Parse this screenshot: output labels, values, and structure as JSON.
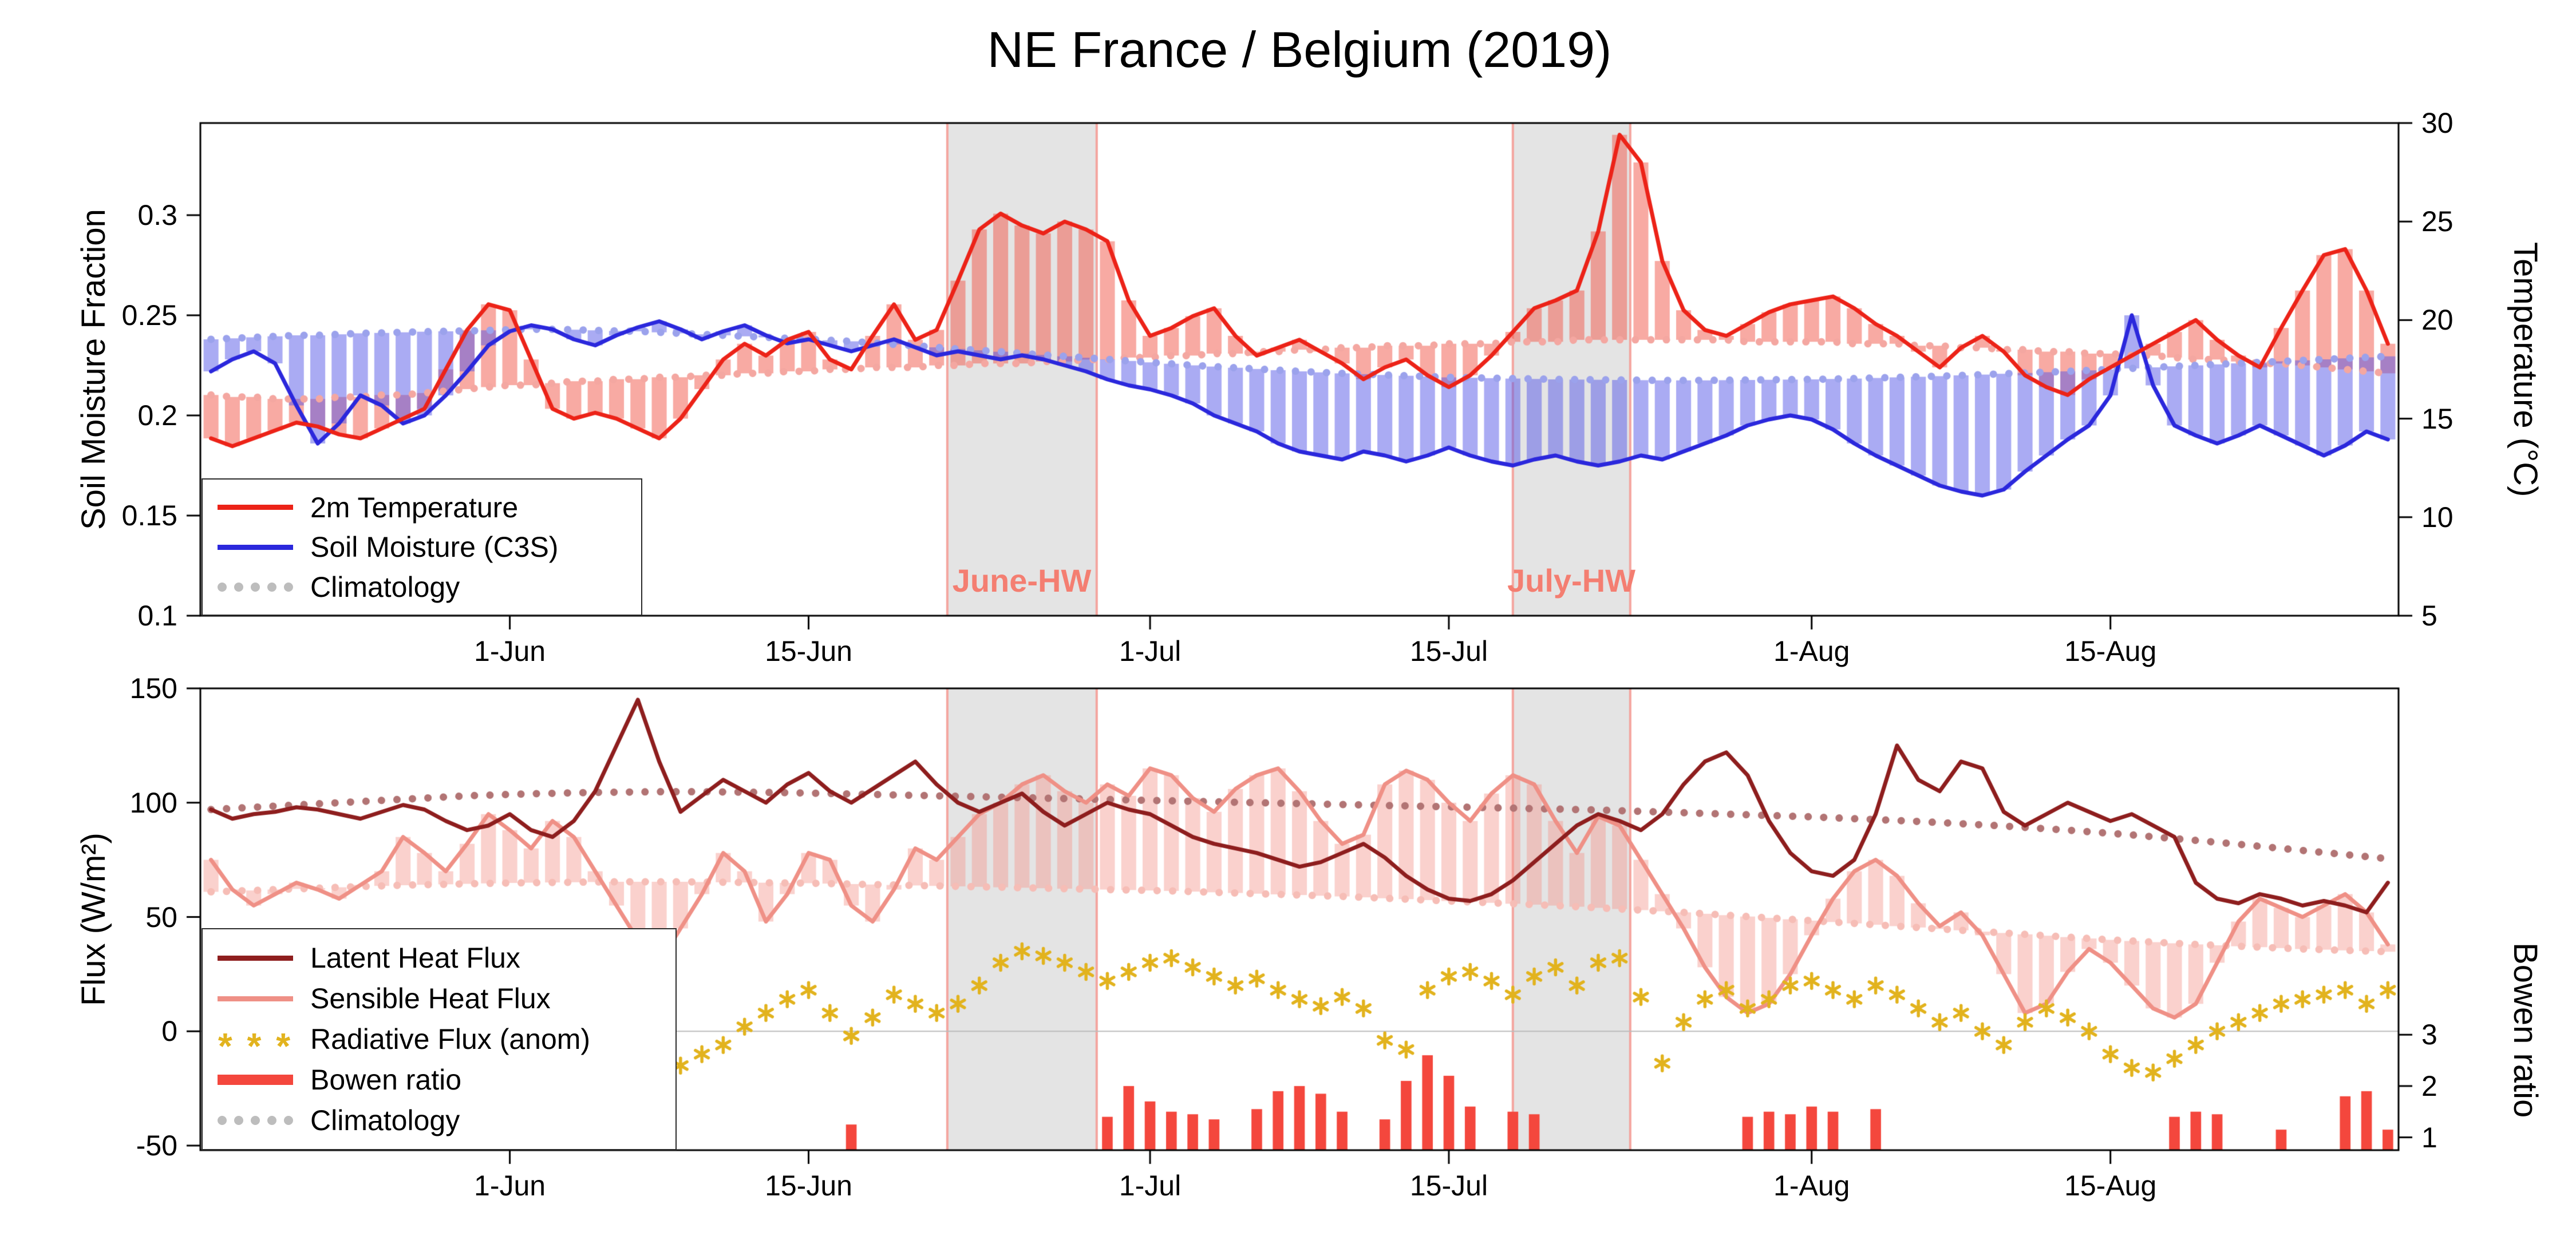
{
  "title": "NE France / Belgium (2019)",
  "markers": {
    "radiative": "* * *"
  },
  "colors": {
    "temperature": "#ec2318",
    "temperature_climatology": "#f4a7a1",
    "temperature_bar": "rgba(242,85,72,0.5)",
    "soil_moisture": "#2b28dc",
    "soil_moisture_climatology": "#9ba2ec",
    "soil_moisture_bar": "rgba(86,88,232,0.5)",
    "latent": "#8e1e1e",
    "latent_climatology": "#b27474",
    "sensible": "#ef9086",
    "sensible_climatology": "#f6bdb6",
    "sensible_bar": "rgba(243,154,144,0.45)",
    "radiative": "#e2b31e",
    "bowen": "#f4473d",
    "climatology_legend": "#bdbdbd",
    "hw_band_fill": "#e4e4e4",
    "hw_band_edge": "rgba(244,156,150,0.9)",
    "hw_label": "#f47e71",
    "zero_line": "#bbbbbb",
    "axis": "#000000"
  },
  "heatwaves": [
    {
      "label": "June-HW",
      "start_day": 35,
      "end_day": 42
    },
    {
      "label": "July-HW",
      "start_day": 61.5,
      "end_day": 67
    }
  ],
  "chart_data": [
    {
      "type": "line",
      "panel": "top",
      "x_start_date": "18-May",
      "x_end_date": "28-Aug",
      "n_days": 103,
      "x_tick_days": [
        14,
        28,
        44,
        58,
        75,
        89
      ],
      "x_tick_labels": [
        "1-Jun",
        "15-Jun",
        "1-Jul",
        "15-Jul",
        "1-Aug",
        "15-Aug"
      ],
      "ylabel_left": "Soil Moisture Fraction",
      "ylim_left": [
        0.1,
        0.346
      ],
      "yticks_left": [
        0.1,
        0.15,
        0.2,
        0.25,
        0.3
      ],
      "ylabel_right": "Temperature (°C)",
      "ylim_right": [
        5,
        30
      ],
      "yticks_right": [
        5,
        10,
        15,
        20,
        25,
        30
      ],
      "legend": [
        "2m Temperature",
        "Soil Moisture (C3S)",
        "Climatology"
      ],
      "series": {
        "temperature": [
          14.0,
          13.6,
          14.0,
          14.4,
          14.8,
          14.6,
          14.2,
          14.0,
          14.5,
          15.0,
          15.5,
          17.5,
          19.5,
          20.8,
          20.5,
          18.0,
          15.5,
          15.0,
          15.3,
          15.0,
          14.5,
          14.0,
          15.0,
          16.5,
          18.0,
          18.8,
          18.2,
          19.0,
          19.4,
          18.0,
          17.5,
          19.2,
          20.8,
          19.0,
          19.5,
          22.0,
          24.6,
          25.4,
          24.8,
          24.4,
          25.0,
          24.6,
          24.0,
          21.0,
          19.2,
          19.6,
          20.2,
          20.6,
          19.2,
          18.2,
          18.6,
          19.0,
          18.4,
          17.8,
          17.0,
          17.6,
          18.0,
          17.2,
          16.6,
          17.2,
          18.2,
          19.4,
          20.6,
          21.0,
          21.5,
          24.5,
          29.4,
          28.0,
          23.0,
          20.5,
          19.5,
          19.2,
          19.8,
          20.4,
          20.8,
          21.0,
          21.2,
          20.6,
          19.8,
          19.2,
          18.4,
          17.6,
          18.6,
          19.2,
          18.4,
          17.2,
          16.6,
          16.2,
          17.0,
          17.6,
          18.2,
          18.8,
          19.4,
          20.0,
          19.0,
          18.2,
          17.6,
          19.6,
          21.5,
          23.3,
          23.6,
          21.5,
          18.8
        ],
        "temperature_climatology": [
          16.2,
          16.1,
          16.1,
          16.0,
          16.0,
          16.0,
          16.1,
          16.1,
          16.2,
          16.2,
          16.3,
          16.4,
          16.5,
          16.6,
          16.7,
          16.7,
          16.8,
          16.9,
          16.9,
          17.0,
          17.0,
          17.1,
          17.1,
          17.2,
          17.2,
          17.3,
          17.3,
          17.4,
          17.4,
          17.5,
          17.5,
          17.6,
          17.6,
          17.6,
          17.7,
          17.7,
          17.8,
          17.8,
          17.8,
          17.9,
          17.9,
          18.0,
          18.0,
          18.1,
          18.1,
          18.2,
          18.2,
          18.3,
          18.3,
          18.4,
          18.4,
          18.5,
          18.5,
          18.6,
          18.6,
          18.7,
          18.7,
          18.7,
          18.8,
          18.8,
          18.8,
          18.9,
          18.9,
          18.9,
          19.0,
          19.0,
          19.0,
          19.0,
          19.0,
          19.0,
          19.0,
          19.0,
          18.9,
          18.9,
          18.9,
          18.9,
          18.9,
          18.8,
          18.8,
          18.8,
          18.7,
          18.7,
          18.6,
          18.6,
          18.5,
          18.5,
          18.4,
          18.4,
          18.3,
          18.3,
          18.2,
          18.2,
          18.1,
          18.0,
          18.0,
          17.9,
          17.8,
          17.8,
          17.7,
          17.6,
          17.5,
          17.4,
          17.3
        ],
        "soil_moisture": [
          0.222,
          0.228,
          0.232,
          0.226,
          0.205,
          0.186,
          0.196,
          0.21,
          0.205,
          0.196,
          0.2,
          0.21,
          0.222,
          0.235,
          0.242,
          0.245,
          0.243,
          0.238,
          0.235,
          0.24,
          0.244,
          0.247,
          0.243,
          0.238,
          0.242,
          0.245,
          0.24,
          0.236,
          0.238,
          0.235,
          0.232,
          0.235,
          0.238,
          0.234,
          0.23,
          0.232,
          0.23,
          0.228,
          0.23,
          0.228,
          0.225,
          0.222,
          0.218,
          0.215,
          0.213,
          0.21,
          0.206,
          0.2,
          0.196,
          0.192,
          0.186,
          0.182,
          0.18,
          0.178,
          0.182,
          0.18,
          0.177,
          0.18,
          0.184,
          0.18,
          0.177,
          0.175,
          0.178,
          0.18,
          0.177,
          0.175,
          0.177,
          0.18,
          0.178,
          0.182,
          0.186,
          0.19,
          0.195,
          0.198,
          0.2,
          0.198,
          0.193,
          0.186,
          0.18,
          0.175,
          0.17,
          0.165,
          0.162,
          0.16,
          0.163,
          0.172,
          0.18,
          0.188,
          0.195,
          0.21,
          0.25,
          0.215,
          0.195,
          0.19,
          0.186,
          0.19,
          0.195,
          0.19,
          0.185,
          0.18,
          0.185,
          0.192,
          0.188
        ],
        "soil_moisture_climatology": [
          0.238,
          0.2385,
          0.239,
          0.2395,
          0.24,
          0.24,
          0.2405,
          0.241,
          0.2412,
          0.2415,
          0.2418,
          0.242,
          0.2422,
          0.2425,
          0.2428,
          0.243,
          0.243,
          0.2428,
          0.2425,
          0.2422,
          0.242,
          0.2415,
          0.241,
          0.2405,
          0.24,
          0.2395,
          0.239,
          0.2385,
          0.238,
          0.2375,
          0.237,
          0.2362,
          0.2355,
          0.2348,
          0.234,
          0.2332,
          0.2325,
          0.2318,
          0.231,
          0.2302,
          0.2295,
          0.2288,
          0.228,
          0.2272,
          0.2265,
          0.2258,
          0.225,
          0.2244,
          0.2238,
          0.2232,
          0.2226,
          0.222,
          0.2215,
          0.221,
          0.2206,
          0.2202,
          0.2198,
          0.2194,
          0.219,
          0.2188,
          0.2186,
          0.2184,
          0.2182,
          0.218,
          0.2179,
          0.2178,
          0.2177,
          0.2176,
          0.2175,
          0.2175,
          0.2175,
          0.2176,
          0.2177,
          0.2178,
          0.2179,
          0.218,
          0.2182,
          0.2184,
          0.2187,
          0.219,
          0.2193,
          0.2196,
          0.22,
          0.2204,
          0.2208,
          0.2212,
          0.2216,
          0.222,
          0.2225,
          0.223,
          0.2235,
          0.224,
          0.2245,
          0.225,
          0.2255,
          0.226,
          0.2265,
          0.227,
          0.2275,
          0.228,
          0.2285,
          0.229,
          0.2295
        ]
      }
    },
    {
      "type": "line",
      "panel": "bottom",
      "x_start_date": "18-May",
      "x_end_date": "28-Aug",
      "n_days": 103,
      "x_tick_days": [
        14,
        28,
        44,
        58,
        75,
        89
      ],
      "x_tick_labels": [
        "1-Jun",
        "15-Jun",
        "1-Jul",
        "15-Jul",
        "1-Aug",
        "15-Aug"
      ],
      "ylabel_left": "Flux (W/m²)",
      "ylim_left": [
        -52,
        150
      ],
      "yticks_left": [
        -50,
        0,
        50,
        100,
        150
      ],
      "ylabel_right": "Bowen ratio",
      "bowen_axis": {
        "ticks": [
          1,
          2,
          3
        ],
        "scale": 22.444,
        "offset": -68.833
      },
      "legend": [
        "Latent Heat Flux",
        "Sensible Heat Flux",
        "Radiative Flux (anom)",
        "Bowen ratio",
        "Climatology"
      ],
      "series": {
        "latent": [
          97,
          93,
          95,
          96,
          98,
          97,
          95,
          93,
          96,
          99,
          97,
          92,
          88,
          90,
          95,
          88,
          85,
          92,
          105,
          125,
          145,
          118,
          96,
          103,
          110,
          105,
          100,
          108,
          113,
          105,
          100,
          106,
          112,
          118,
          108,
          100,
          96,
          100,
          104,
          96,
          90,
          95,
          100,
          97,
          95,
          90,
          85,
          82,
          80,
          78,
          75,
          72,
          74,
          78,
          82,
          76,
          68,
          62,
          58,
          57,
          60,
          66,
          74,
          82,
          90,
          95,
          92,
          88,
          95,
          108,
          118,
          122,
          112,
          92,
          78,
          70,
          68,
          75,
          95,
          125,
          110,
          105,
          118,
          115,
          96,
          90,
          95,
          100,
          96,
          92,
          95,
          90,
          85,
          65,
          58,
          56,
          60,
          58,
          55,
          57,
          55,
          52,
          65
        ],
        "latent_climatology": [
          97,
          97.5,
          98,
          98.5,
          99,
          99.5,
          100,
          100.5,
          101,
          101.5,
          102,
          102.5,
          103,
          103.3,
          103.6,
          103.9,
          104.1,
          104.3,
          104.5,
          104.6,
          104.7,
          104.8,
          104.8,
          104.8,
          104.7,
          104.6,
          104.5,
          104.4,
          104.2,
          104,
          103.8,
          103.6,
          103.4,
          103.2,
          103,
          102.8,
          102.6,
          102.4,
          102.2,
          102,
          101.8,
          101.6,
          101.4,
          101.2,
          101,
          100.8,
          100.6,
          100.4,
          100.2,
          100,
          99.8,
          99.6,
          99.4,
          99.2,
          99,
          98.8,
          98.6,
          98.4,
          98.2,
          98,
          97.8,
          97.6,
          97.4,
          97.2,
          97,
          96.8,
          96.5,
          96.2,
          95.9,
          95.6,
          95.3,
          95,
          94.7,
          94.4,
          94.1,
          93.8,
          93.4,
          93,
          92.6,
          92.2,
          91.8,
          91.3,
          90.8,
          90.3,
          89.8,
          89.2,
          88.6,
          88,
          87.3,
          86.6,
          85.9,
          85.1,
          84.3,
          83.5,
          82.7,
          81.8,
          80.9,
          80,
          79.1,
          78.2,
          77.3,
          76.4,
          75.5
        ],
        "sensible": [
          75,
          62,
          55,
          60,
          65,
          62,
          58,
          64,
          70,
          85,
          78,
          70,
          82,
          95,
          88,
          80,
          92,
          85,
          70,
          55,
          40,
          30,
          45,
          60,
          78,
          70,
          48,
          60,
          78,
          75,
          55,
          48,
          62,
          80,
          75,
          85,
          95,
          100,
          108,
          112,
          105,
          100,
          108,
          103,
          115,
          112,
          102,
          96,
          106,
          112,
          115,
          105,
          92,
          82,
          86,
          108,
          114,
          110,
          100,
          92,
          104,
          112,
          108,
          92,
          78,
          94,
          90,
          75,
          60,
          45,
          28,
          15,
          8,
          12,
          25,
          42,
          58,
          70,
          75,
          68,
          56,
          46,
          52,
          42,
          25,
          8,
          12,
          26,
          36,
          30,
          20,
          10,
          6,
          12,
          30,
          48,
          58,
          54,
          50,
          55,
          60,
          52,
          38
        ],
        "sensible_climatology": [
          61,
          61.3,
          61.6,
          62,
          62.3,
          62.6,
          63,
          63.3,
          63.6,
          63.9,
          64.1,
          64.3,
          64.5,
          64.7,
          64.9,
          65,
          65.1,
          65.2,
          65.3,
          65.4,
          65.4,
          65.4,
          65.4,
          65.3,
          65.2,
          65.1,
          65,
          64.9,
          64.8,
          64.6,
          64.4,
          64.2,
          64,
          63.8,
          63.6,
          63.4,
          63.2,
          63,
          62.8,
          62.6,
          62.4,
          62.2,
          62,
          61.8,
          61.6,
          61.4,
          61.1,
          60.8,
          60.5,
          60.2,
          59.9,
          59.6,
          59.3,
          59,
          58.6,
          58.2,
          57.8,
          57.4,
          57,
          56.6,
          56.2,
          55.8,
          55.4,
          55,
          54.5,
          54,
          53.5,
          53,
          52.5,
          52,
          51.4,
          50.8,
          50.2,
          49.6,
          49,
          48.4,
          47.8,
          47.2,
          46.6,
          46,
          45.4,
          44.8,
          44.2,
          43.6,
          43,
          42.4,
          41.8,
          41.2,
          40.6,
          40,
          39.5,
          39,
          38.5,
          38,
          37.6,
          37.2,
          36.8,
          36.4,
          36,
          35.7,
          35.4,
          35.1,
          34.8
        ],
        "radiative_anomaly": [
          null,
          null,
          null,
          null,
          null,
          null,
          null,
          null,
          null,
          null,
          null,
          null,
          null,
          null,
          null,
          null,
          null,
          null,
          null,
          -8,
          -5,
          -12,
          -15,
          -10,
          -6,
          2,
          8,
          14,
          18,
          8,
          -2,
          6,
          16,
          12,
          8,
          12,
          20,
          30,
          35,
          33,
          30,
          26,
          22,
          26,
          30,
          32,
          28,
          24,
          20,
          23,
          18,
          14,
          11,
          15,
          10,
          -4,
          -8,
          18,
          24,
          26,
          22,
          16,
          24,
          28,
          20,
          30,
          32,
          15,
          -14,
          4,
          14,
          18,
          10,
          14,
          20,
          22,
          18,
          14,
          20,
          16,
          10,
          4,
          8,
          0,
          -6,
          4,
          10,
          6,
          0,
          -10,
          -16,
          -18,
          -12,
          -6,
          0,
          4,
          8,
          12,
          14,
          16,
          18,
          12,
          18
        ],
        "bowen_ratio": [
          null,
          null,
          null,
          null,
          null,
          null,
          null,
          null,
          null,
          null,
          null,
          null,
          null,
          null,
          null,
          null,
          null,
          null,
          null,
          null,
          null,
          null,
          null,
          null,
          null,
          null,
          null,
          null,
          null,
          null,
          1.25,
          null,
          null,
          null,
          null,
          null,
          null,
          null,
          null,
          null,
          null,
          null,
          1.4,
          2.0,
          1.7,
          1.5,
          1.45,
          1.35,
          null,
          1.55,
          1.9,
          2.0,
          1.85,
          1.5,
          null,
          1.35,
          2.1,
          2.6,
          2.2,
          1.6,
          null,
          1.5,
          1.45,
          null,
          null,
          null,
          null,
          null,
          null,
          null,
          null,
          null,
          1.4,
          1.5,
          1.45,
          1.6,
          1.5,
          null,
          1.55,
          null,
          null,
          null,
          null,
          null,
          null,
          null,
          null,
          null,
          null,
          null,
          null,
          null,
          1.4,
          1.5,
          1.45,
          null,
          null,
          1.15,
          null,
          null,
          1.8,
          1.9,
          1.15
        ]
      }
    }
  ]
}
